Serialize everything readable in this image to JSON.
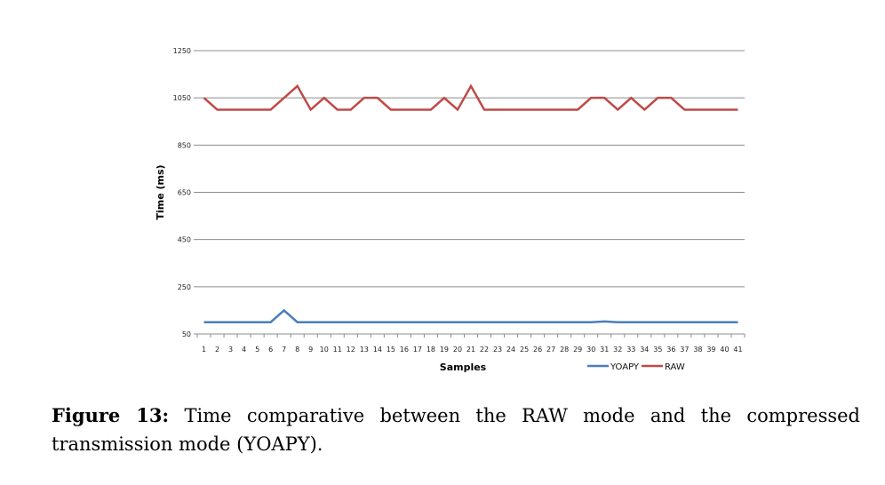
{
  "chart_data": {
    "type": "line",
    "xlabel": "Samples",
    "ylabel": "Time (ms)",
    "ylim": [
      50,
      1250
    ],
    "yticks": [
      50,
      250,
      450,
      650,
      850,
      1050,
      1250
    ],
    "grid": true,
    "legend_position": "bottom-right",
    "x": [
      1,
      2,
      3,
      4,
      5,
      6,
      7,
      8,
      9,
      10,
      11,
      12,
      13,
      14,
      15,
      16,
      17,
      18,
      19,
      20,
      21,
      22,
      23,
      24,
      25,
      26,
      27,
      28,
      29,
      30,
      31,
      32,
      33,
      34,
      35,
      36,
      37,
      38,
      39,
      40,
      41
    ],
    "series": [
      {
        "name": "YOAPY",
        "color": "#4a7ebb",
        "values": [
          100,
          100,
          100,
          100,
          100,
          100,
          150,
          100,
          100,
          100,
          100,
          100,
          100,
          100,
          100,
          100,
          100,
          100,
          100,
          100,
          100,
          100,
          100,
          100,
          100,
          100,
          100,
          100,
          100,
          100,
          103,
          100,
          100,
          100,
          100,
          100,
          100,
          100,
          100,
          100,
          100
        ]
      },
      {
        "name": "RAW",
        "color": "#be4b48",
        "values": [
          1050,
          1000,
          1000,
          1000,
          1000,
          1000,
          1050,
          1100,
          1000,
          1050,
          1000,
          1000,
          1050,
          1050,
          1000,
          1000,
          1000,
          1000,
          1050,
          1000,
          1100,
          1000,
          1000,
          1000,
          1000,
          1000,
          1000,
          1000,
          1000,
          1050,
          1050,
          1000,
          1050,
          1000,
          1050,
          1050,
          1000,
          1000,
          1000,
          1000,
          1000
        ]
      }
    ]
  },
  "caption": {
    "label": "Figure 13:",
    "text": " Time comparative between the RAW mode and the compressed transmission mode (YOAPY)."
  }
}
